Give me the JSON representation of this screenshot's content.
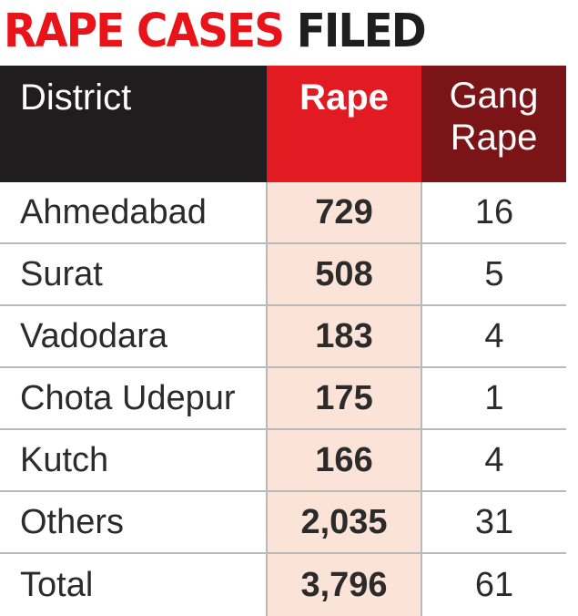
{
  "title": {
    "part1": "RAPE CASES",
    "part2": "FILED"
  },
  "colors": {
    "title_red": "#e8141a",
    "header_district": "#201d1e",
    "header_rape": "#e21b22",
    "header_gang_rape": "#7b1416",
    "rape_column_fill": "#fbe3d8"
  },
  "chart_data": {
    "type": "table",
    "title": "RAPE CASES FILED",
    "columns": [
      "District",
      "Rape",
      "Gang Rape"
    ],
    "header_lines": {
      "gang_rape": [
        "Gang",
        "Rape"
      ]
    },
    "rows": [
      {
        "district": "Ahmedabad",
        "rape": "729",
        "gang_rape": "16"
      },
      {
        "district": "Surat",
        "rape": "508",
        "gang_rape": "5"
      },
      {
        "district": "Vadodara",
        "rape": "183",
        "gang_rape": "4"
      },
      {
        "district": "Chota Udepur",
        "rape": "175",
        "gang_rape": "1"
      },
      {
        "district": "Kutch",
        "rape": "166",
        "gang_rape": "4"
      },
      {
        "district": "Others",
        "rape": "2,035",
        "gang_rape": "31"
      },
      {
        "district": "Total",
        "rape": "3,796",
        "gang_rape": "61"
      }
    ]
  }
}
